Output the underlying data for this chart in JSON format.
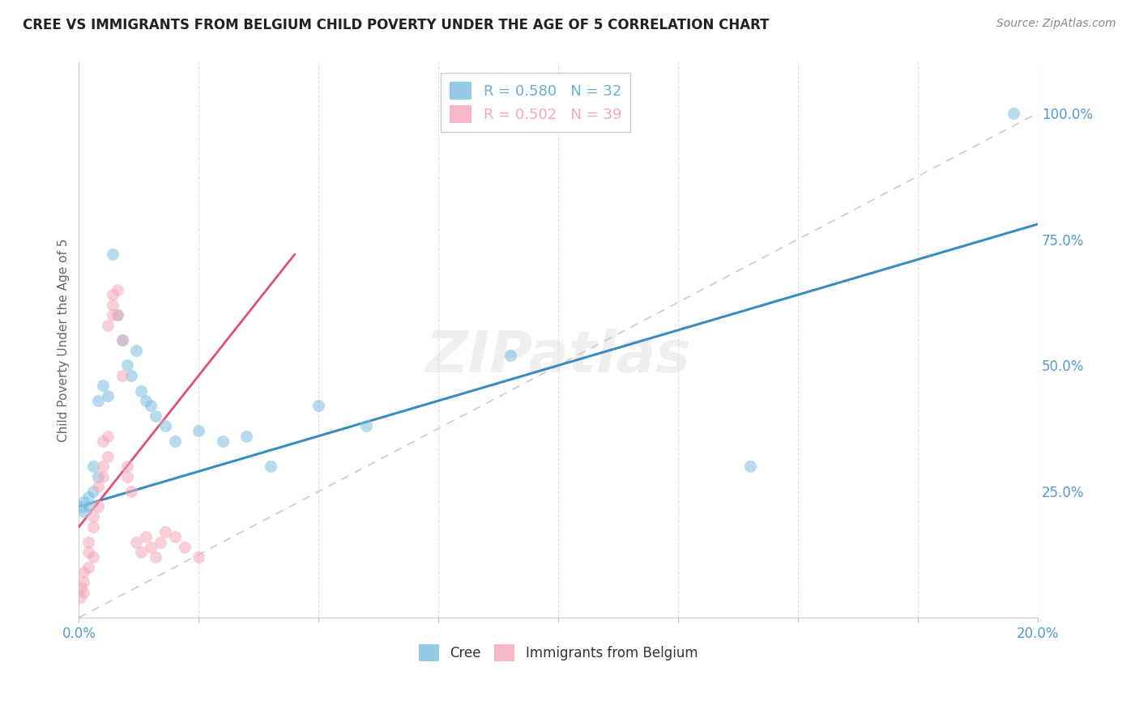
{
  "title": "CREE VS IMMIGRANTS FROM BELGIUM CHILD POVERTY UNDER THE AGE OF 5 CORRELATION CHART",
  "source": "Source: ZipAtlas.com",
  "ylabel": "Child Poverty Under the Age of 5",
  "ytick_labels": [
    "100.0%",
    "75.0%",
    "50.0%",
    "25.0%"
  ],
  "ytick_values": [
    1.0,
    0.75,
    0.5,
    0.25
  ],
  "legend_entries": [
    {
      "label_r": "R = 0.580",
      "label_n": "N = 32",
      "color": "#6baed6"
    },
    {
      "label_r": "R = 0.502",
      "label_n": "N = 39",
      "color": "#f4a6b8"
    }
  ],
  "cree_scatter_x": [
    0.0005,
    0.001,
    0.001,
    0.002,
    0.002,
    0.003,
    0.003,
    0.004,
    0.004,
    0.005,
    0.006,
    0.007,
    0.008,
    0.009,
    0.01,
    0.011,
    0.012,
    0.013,
    0.014,
    0.015,
    0.016,
    0.018,
    0.02,
    0.025,
    0.03,
    0.035,
    0.04,
    0.05,
    0.06,
    0.09,
    0.14,
    0.195
  ],
  "cree_scatter_y": [
    0.22,
    0.21,
    0.23,
    0.24,
    0.22,
    0.25,
    0.3,
    0.28,
    0.43,
    0.46,
    0.44,
    0.72,
    0.6,
    0.55,
    0.5,
    0.48,
    0.53,
    0.45,
    0.43,
    0.42,
    0.4,
    0.38,
    0.35,
    0.37,
    0.35,
    0.36,
    0.3,
    0.42,
    0.38,
    0.52,
    0.3,
    1.0
  ],
  "belgium_scatter_x": [
    0.0003,
    0.0005,
    0.001,
    0.001,
    0.001,
    0.002,
    0.002,
    0.002,
    0.003,
    0.003,
    0.003,
    0.004,
    0.004,
    0.005,
    0.005,
    0.005,
    0.006,
    0.006,
    0.006,
    0.007,
    0.007,
    0.007,
    0.008,
    0.008,
    0.009,
    0.009,
    0.01,
    0.01,
    0.011,
    0.012,
    0.013,
    0.014,
    0.015,
    0.016,
    0.017,
    0.018,
    0.02,
    0.022,
    0.025
  ],
  "belgium_scatter_y": [
    0.04,
    0.06,
    0.05,
    0.07,
    0.09,
    0.1,
    0.13,
    0.15,
    0.12,
    0.18,
    0.2,
    0.22,
    0.26,
    0.28,
    0.3,
    0.35,
    0.32,
    0.36,
    0.58,
    0.6,
    0.62,
    0.64,
    0.6,
    0.65,
    0.55,
    0.48,
    0.28,
    0.3,
    0.25,
    0.15,
    0.13,
    0.16,
    0.14,
    0.12,
    0.15,
    0.17,
    0.16,
    0.14,
    0.12
  ],
  "cree_line_x": [
    0.0,
    0.2
  ],
  "cree_line_y": [
    0.22,
    0.78
  ],
  "belgium_line_x": [
    0.0,
    0.045
  ],
  "belgium_line_y": [
    0.18,
    0.72
  ],
  "diagonal_line_x": [
    0.0,
    0.2
  ],
  "diagonal_line_y": [
    0.0,
    1.0
  ],
  "cree_color": "#7bbde0",
  "belgium_color": "#f4a6b8",
  "cree_line_color": "#3a8bbf",
  "belgium_line_color": "#e05070",
  "diagonal_line_color": "#cccccc",
  "background_color": "#ffffff",
  "grid_color": "#dddddd",
  "title_fontsize": 12,
  "axis_label_color": "#5599cc",
  "scatter_size": 120,
  "scatter_alpha": 0.55,
  "xlim": [
    0.0,
    0.2
  ],
  "ylim": [
    0.0,
    1.1
  ],
  "legend_label_cree": "Cree",
  "legend_label_belgium": "Immigrants from Belgium"
}
